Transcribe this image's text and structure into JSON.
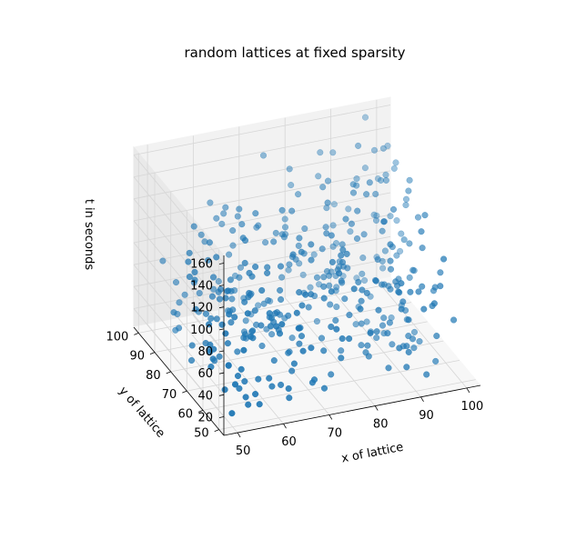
{
  "chart_data": {
    "type": "scatter",
    "projection": "3d",
    "title": "random lattices at fixed sparsity",
    "xlabel": "x of lattice",
    "ylabel": "y of lattice",
    "zlabel": "t in seconds",
    "xlim": [
      47,
      103
    ],
    "ylim": [
      47,
      103
    ],
    "zlim": [
      3,
      167
    ],
    "x_ticks": [
      50,
      60,
      70,
      80,
      90,
      100
    ],
    "y_ticks": [
      50,
      60,
      70,
      80,
      90,
      100
    ],
    "z_ticks": [
      20,
      40,
      60,
      80,
      100,
      120,
      140,
      160
    ],
    "grid": true,
    "marker_color": "#1f77b4",
    "points_count": 400
  }
}
